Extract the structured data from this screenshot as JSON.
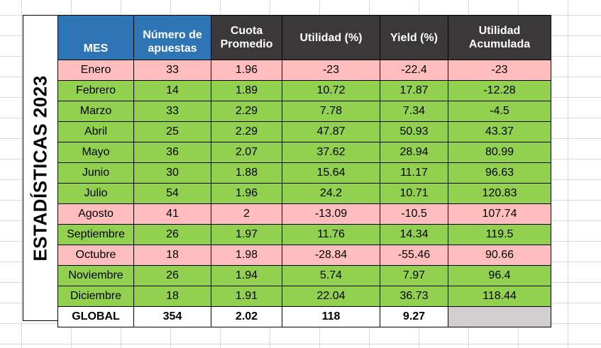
{
  "sheet": {
    "side_title": "ESTADÍSTICAS 2023",
    "columns": [
      "MES",
      "Número de apuestas",
      "Cuota Promedio",
      "Utilidad (%)",
      "Yield (%)",
      "Utilidad Acumulada"
    ],
    "rows": [
      {
        "mes": "Enero",
        "apuestas": "33",
        "cuota": "1.96",
        "utilidad": "-23",
        "yield": "-22.4",
        "acumulada": "-23",
        "status": "neg"
      },
      {
        "mes": "Febrero",
        "apuestas": "14",
        "cuota": "1.89",
        "utilidad": "10.72",
        "yield": "17.87",
        "acumulada": "-12.28",
        "status": "pos"
      },
      {
        "mes": "Marzo",
        "apuestas": "33",
        "cuota": "2.29",
        "utilidad": "7.78",
        "yield": "7.34",
        "acumulada": "-4.5",
        "status": "pos"
      },
      {
        "mes": "Abril",
        "apuestas": "25",
        "cuota": "2.29",
        "utilidad": "47.87",
        "yield": "50.93",
        "acumulada": "43.37",
        "status": "pos"
      },
      {
        "mes": "Mayo",
        "apuestas": "36",
        "cuota": "2.07",
        "utilidad": "37.62",
        "yield": "28.94",
        "acumulada": "80.99",
        "status": "pos"
      },
      {
        "mes": "Junio",
        "apuestas": "30",
        "cuota": "1.88",
        "utilidad": "15.64",
        "yield": "11.17",
        "acumulada": "96.63",
        "status": "pos"
      },
      {
        "mes": "Julio",
        "apuestas": "54",
        "cuota": "1.96",
        "utilidad": "24.2",
        "yield": "10.71",
        "acumulada": "120.83",
        "status": "pos"
      },
      {
        "mes": "Agosto",
        "apuestas": "41",
        "cuota": "2",
        "utilidad": "-13.09",
        "yield": "-10.5",
        "acumulada": "107.74",
        "status": "neg"
      },
      {
        "mes": "Septiembre",
        "apuestas": "26",
        "cuota": "1.97",
        "utilidad": "11.76",
        "yield": "14.34",
        "acumulada": "119.5",
        "status": "pos"
      },
      {
        "mes": "Octubre",
        "apuestas": "18",
        "cuota": "1.98",
        "utilidad": "-28.84",
        "yield": "-55.46",
        "acumulada": "90.66",
        "status": "neg"
      },
      {
        "mes": "Noviembre",
        "apuestas": "26",
        "cuota": "1.94",
        "utilidad": "5.74",
        "yield": "7.97",
        "acumulada": "96.4",
        "status": "pos"
      },
      {
        "mes": "Diciembre",
        "apuestas": "18",
        "cuota": "1.91",
        "utilidad": "22.04",
        "yield": "36.73",
        "acumulada": "118.44",
        "status": "pos"
      }
    ],
    "total": {
      "mes": "GLOBAL",
      "apuestas": "354",
      "cuota": "2.02",
      "utilidad": "118",
      "yield": "9.27",
      "acumulada": ""
    }
  },
  "colors": {
    "header_blue": "#2e75b6",
    "header_dark": "#3a3838",
    "positive_row": "#92d050",
    "negative_row": "#ffbdbd",
    "total_grey": "#d0cece"
  }
}
